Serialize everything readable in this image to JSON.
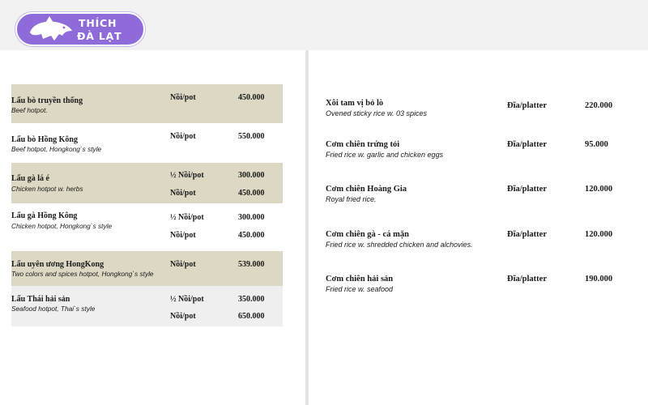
{
  "brand": {
    "line1": "THÍCH",
    "line2": "ĐÀ LẠT"
  },
  "left_menu": [
    {
      "name": "Lẩu bò truyền thống",
      "eng": "Beef hotpot.",
      "prices": [
        {
          "unit": "Nồi/pot",
          "price": "450.000"
        }
      ]
    },
    {
      "name": "Lẩu bò Hồng Kông",
      "eng": "Beef hotpot, Hongkong`s style",
      "prices": [
        {
          "unit": "Nồi/pot",
          "price": "550.000"
        }
      ]
    },
    {
      "name": "Lẩu gà lá é",
      "eng": "Chicken hotpot w. herbs",
      "prices": [
        {
          "unit": "½ Nồi/pot",
          "price": "300.000"
        },
        {
          "unit": "Nồi/pot",
          "price": "450.000"
        }
      ]
    },
    {
      "name": "Lẩu gà Hồng Kông",
      "eng": "Chicken hotpot, Hongkong`s style",
      "prices": [
        {
          "unit": "½ Nồi/pot",
          "price": "300.000"
        },
        {
          "unit": "Nồi/pot",
          "price": "450.000"
        }
      ]
    },
    {
      "name": "Lẩu uyên ương HongKong",
      "eng": "Two colors and spices hotpot, Hongkong`s style",
      "prices": [
        {
          "unit": "Nồi/pot",
          "price": "539.000"
        }
      ]
    },
    {
      "name": "Lẩu Thái hải sản",
      "eng": "Seafood hotpot, Thai`s style",
      "prices": [
        {
          "unit": "½ Nồi/pot",
          "price": "350.000"
        },
        {
          "unit": "Nồi/pot",
          "price": "650.000"
        }
      ]
    }
  ],
  "right_menu": [
    {
      "name": "Xôi tam vị bỏ lò",
      "eng": "Ovened sticky rice w. 03 spices",
      "unit": "Đĩa/platter",
      "price": "220.000"
    },
    {
      "name": "Cơm chiên trứng tỏi",
      "eng": "Fried rice w. garlic and chicken eggs",
      "unit": "Đĩa/platter",
      "price": "95.000"
    },
    {
      "name": "Cơm chiên Hoàng Gia",
      "eng": "Royal fried rice.",
      "unit": "Đĩa/platter",
      "price": "120.000"
    },
    {
      "name": "Cơm chiên gà - cá mặn",
      "eng": " Fried rice w. shredded chicken and alchovies.",
      "unit": "Đĩa/platter",
      "price": "120.000"
    },
    {
      "name": "Cơm chiên hải sản",
      "eng": "Fried rice w. seafood",
      "unit": "Đĩa/platter",
      "price": "190.000"
    }
  ]
}
